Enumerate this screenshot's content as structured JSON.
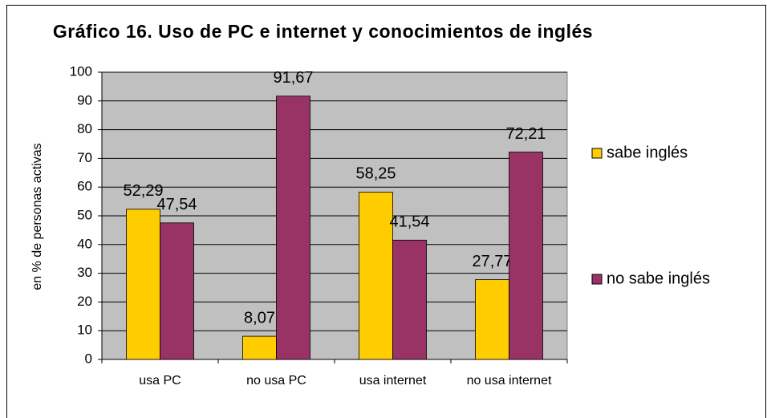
{
  "chart_data": {
    "type": "bar",
    "title": "Gráfico 16. Uso de PC e internet y conocimientos de inglés",
    "y_label": "en % de personas activas",
    "categories": [
      "usa PC",
      "no usa PC",
      "usa internet",
      "no usa internet"
    ],
    "series": [
      {
        "name": "sabe inglés",
        "color": "#ffcc00",
        "values": [
          52.29,
          8.07,
          58.25,
          27.77
        ],
        "value_labels": [
          "52,29",
          "8,07",
          "58,25",
          "27,77"
        ]
      },
      {
        "name": "no sabe inglés",
        "color": "#993366",
        "values": [
          47.54,
          91.67,
          41.54,
          72.21
        ],
        "value_labels": [
          "47,54",
          "91,67",
          "41,54",
          "72,21"
        ]
      }
    ],
    "ylim": [
      0,
      100
    ],
    "yticks": [
      0,
      10,
      20,
      30,
      40,
      50,
      60,
      70,
      80,
      90,
      100
    ],
    "grid": true,
    "legend": "right",
    "plot_background": "#c0c0c0"
  }
}
